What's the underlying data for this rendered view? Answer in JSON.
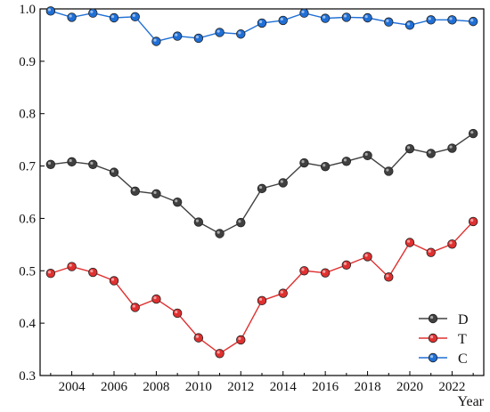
{
  "chart_data": {
    "type": "line",
    "title": "",
    "xlabel": "Year",
    "ylabel": "",
    "x": [
      2003,
      2004,
      2005,
      2006,
      2007,
      2008,
      2009,
      2010,
      2011,
      2012,
      2013,
      2014,
      2015,
      2016,
      2017,
      2018,
      2019,
      2020,
      2021,
      2022,
      2023
    ],
    "xlim": [
      2002.5,
      2023.5
    ],
    "ylim": [
      0.3,
      1.0
    ],
    "x_ticks": [
      "2004",
      "2006",
      "2008",
      "2010",
      "2012",
      "2014",
      "2016",
      "2018",
      "2020",
      "2022"
    ],
    "y_ticks": [
      "0.3",
      "0.4",
      "0.5",
      "0.6",
      "0.7",
      "0.8",
      "0.9",
      "1.0"
    ],
    "grid": false,
    "legend_position": "bottom-right",
    "series": [
      {
        "name": "D",
        "color": "#404040",
        "values": [
          0.703,
          0.708,
          0.703,
          0.688,
          0.652,
          0.647,
          0.631,
          0.593,
          0.571,
          0.592,
          0.657,
          0.668,
          0.706,
          0.699,
          0.709,
          0.72,
          0.69,
          0.733,
          0.724,
          0.734,
          0.762
        ]
      },
      {
        "name": "T",
        "color": "#e03030",
        "values": [
          0.495,
          0.508,
          0.497,
          0.481,
          0.43,
          0.446,
          0.419,
          0.372,
          0.342,
          0.368,
          0.443,
          0.457,
          0.5,
          0.496,
          0.511,
          0.527,
          0.488,
          0.554,
          0.535,
          0.551,
          0.594
        ]
      },
      {
        "name": "C",
        "color": "#1f6fd6",
        "values": [
          0.996,
          0.984,
          0.992,
          0.983,
          0.985,
          0.938,
          0.948,
          0.944,
          0.955,
          0.952,
          0.973,
          0.978,
          0.992,
          0.982,
          0.984,
          0.983,
          0.975,
          0.969,
          0.979,
          0.979,
          0.976
        ]
      }
    ]
  }
}
